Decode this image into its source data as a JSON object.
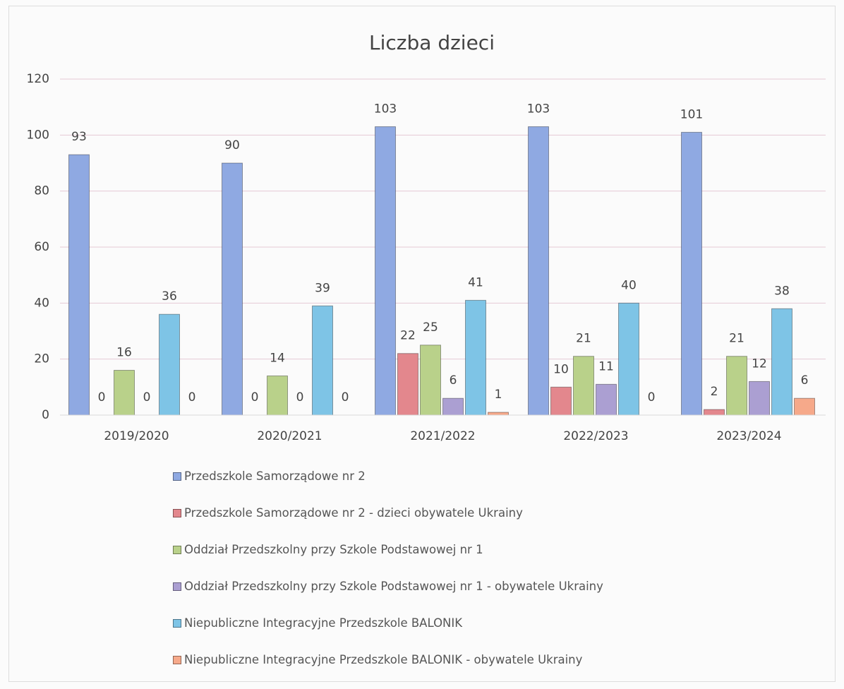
{
  "chart_data": {
    "type": "bar",
    "title": "Liczba dzieci",
    "categories": [
      "2019/2020",
      "2020/2021",
      "2021/2022",
      "2022/2023",
      "2023/2024"
    ],
    "series": [
      {
        "name": "Przedszkole Samorządowe nr 2",
        "color": "#8fa9e2",
        "values": [
          93,
          90,
          103,
          103,
          101
        ]
      },
      {
        "name": "Przedszkole Samorządowe nr 2 - dzieci obywatele Ukrainy",
        "color": "#e3878d",
        "values": [
          0,
          0,
          22,
          10,
          2
        ]
      },
      {
        "name": "Oddział Przedszkolny przy Szkole Podstawowej nr 1",
        "color": "#b9d18a",
        "values": [
          16,
          14,
          25,
          21,
          21
        ]
      },
      {
        "name": "Oddział Przedszkolny przy Szkole Podstawowej nr 1 - obywatele Ukrainy",
        "color": "#ab9fd2",
        "values": [
          0,
          0,
          6,
          11,
          12
        ]
      },
      {
        "name": "Niepubliczne Integracyjne Przedszkole BALONIK",
        "color": "#7ec4e6",
        "values": [
          36,
          39,
          41,
          40,
          38
        ]
      },
      {
        "name": "Niepubliczne Integracyjne Przedszkole BALONIK - obywatele Ukrainy",
        "color": "#f6a98a",
        "values": [
          0,
          0,
          1,
          0,
          6
        ]
      }
    ],
    "ylim": [
      0,
      120
    ],
    "yticks": [
      0,
      20,
      40,
      60,
      80,
      100,
      120
    ],
    "grid": true,
    "legend": "bottom"
  }
}
